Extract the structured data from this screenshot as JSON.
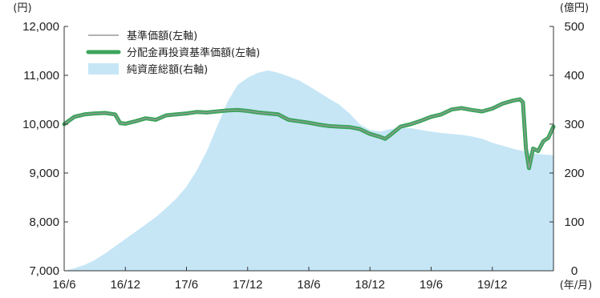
{
  "chart_data": {
    "type": "line",
    "units": {
      "left": "(円)",
      "right": "(億円)",
      "x": "(年/月)"
    },
    "yleft": {
      "lim": [
        7000,
        12000
      ],
      "ticks": [
        "7,000",
        "8,000",
        "9,000",
        "10,000",
        "11,000",
        "12,000"
      ]
    },
    "yright": {
      "lim": [
        0,
        500
      ],
      "ticks": [
        "0",
        "100",
        "200",
        "300",
        "400",
        "500"
      ]
    },
    "x": {
      "lim": [
        0,
        48
      ],
      "ticks": [
        "16/6",
        "16/12",
        "17/6",
        "17/12",
        "18/6",
        "18/12",
        "19/6",
        "19/12"
      ]
    },
    "grid": false,
    "legend_position": "top-left",
    "colors": {
      "nav": "#9a9a9a",
      "reinvested": "#3aa55a",
      "assets": "#c6e6f6"
    },
    "series": [
      {
        "name": "基準価額(左軸)",
        "axis": "left",
        "style": "line",
        "points": [
          [
            0,
            10000
          ],
          [
            1,
            10150
          ],
          [
            2,
            10200
          ],
          [
            3,
            10220
          ],
          [
            4,
            10230
          ],
          [
            5,
            10200
          ],
          [
            5.5,
            10020
          ],
          [
            6,
            10010
          ],
          [
            7,
            10060
          ],
          [
            8,
            10120
          ],
          [
            9,
            10090
          ],
          [
            10,
            10180
          ],
          [
            11,
            10200
          ],
          [
            12,
            10220
          ],
          [
            13,
            10250
          ],
          [
            14,
            10240
          ],
          [
            15,
            10260
          ],
          [
            16,
            10280
          ],
          [
            17,
            10290
          ],
          [
            18,
            10270
          ],
          [
            19,
            10240
          ],
          [
            20,
            10220
          ],
          [
            21,
            10200
          ],
          [
            22,
            10090
          ],
          [
            23,
            10060
          ],
          [
            24,
            10030
          ],
          [
            25,
            9990
          ],
          [
            26,
            9960
          ],
          [
            27,
            9950
          ],
          [
            28,
            9940
          ],
          [
            29,
            9900
          ],
          [
            30,
            9800
          ],
          [
            31,
            9740
          ],
          [
            31.5,
            9700
          ],
          [
            32,
            9780
          ],
          [
            33,
            9950
          ],
          [
            34,
            10000
          ],
          [
            35,
            10070
          ],
          [
            36,
            10150
          ],
          [
            37,
            10200
          ],
          [
            38,
            10300
          ],
          [
            39,
            10330
          ],
          [
            40,
            10290
          ],
          [
            41,
            10260
          ],
          [
            42,
            10320
          ],
          [
            43,
            10420
          ],
          [
            44,
            10480
          ],
          [
            44.7,
            10510
          ],
          [
            45,
            10450
          ],
          [
            45.3,
            9500
          ],
          [
            45.6,
            9100
          ],
          [
            46,
            9500
          ],
          [
            46.5,
            9450
          ],
          [
            47,
            9650
          ],
          [
            47.5,
            9720
          ],
          [
            48,
            9950
          ]
        ]
      },
      {
        "name": "分配金再投資基準価額(左軸)",
        "axis": "left",
        "style": "line",
        "points": [
          [
            0,
            10000
          ],
          [
            1,
            10150
          ],
          [
            2,
            10200
          ],
          [
            3,
            10220
          ],
          [
            4,
            10230
          ],
          [
            5,
            10200
          ],
          [
            5.5,
            10020
          ],
          [
            6,
            10010
          ],
          [
            7,
            10060
          ],
          [
            8,
            10120
          ],
          [
            9,
            10090
          ],
          [
            10,
            10180
          ],
          [
            11,
            10200
          ],
          [
            12,
            10220
          ],
          [
            13,
            10250
          ],
          [
            14,
            10240
          ],
          [
            15,
            10260
          ],
          [
            16,
            10280
          ],
          [
            17,
            10290
          ],
          [
            18,
            10270
          ],
          [
            19,
            10240
          ],
          [
            20,
            10220
          ],
          [
            21,
            10200
          ],
          [
            22,
            10090
          ],
          [
            23,
            10060
          ],
          [
            24,
            10030
          ],
          [
            25,
            9990
          ],
          [
            26,
            9960
          ],
          [
            27,
            9950
          ],
          [
            28,
            9940
          ],
          [
            29,
            9900
          ],
          [
            30,
            9800
          ],
          [
            31,
            9740
          ],
          [
            31.5,
            9700
          ],
          [
            32,
            9780
          ],
          [
            33,
            9950
          ],
          [
            34,
            10000
          ],
          [
            35,
            10070
          ],
          [
            36,
            10150
          ],
          [
            37,
            10200
          ],
          [
            38,
            10300
          ],
          [
            39,
            10330
          ],
          [
            40,
            10290
          ],
          [
            41,
            10260
          ],
          [
            42,
            10320
          ],
          [
            43,
            10420
          ],
          [
            44,
            10480
          ],
          [
            44.7,
            10510
          ],
          [
            45,
            10450
          ],
          [
            45.3,
            9500
          ],
          [
            45.6,
            9100
          ],
          [
            46,
            9500
          ],
          [
            46.5,
            9450
          ],
          [
            47,
            9650
          ],
          [
            47.5,
            9720
          ],
          [
            48,
            9950
          ]
        ]
      },
      {
        "name": "純資産総額(右軸)",
        "axis": "right",
        "style": "area",
        "points": [
          [
            0,
            0
          ],
          [
            1,
            5
          ],
          [
            2,
            12
          ],
          [
            3,
            22
          ],
          [
            4,
            35
          ],
          [
            5,
            50
          ],
          [
            6,
            65
          ],
          [
            7,
            80
          ],
          [
            8,
            95
          ],
          [
            9,
            110
          ],
          [
            10,
            128
          ],
          [
            11,
            148
          ],
          [
            12,
            172
          ],
          [
            13,
            205
          ],
          [
            14,
            245
          ],
          [
            15,
            295
          ],
          [
            16,
            345
          ],
          [
            17,
            380
          ],
          [
            18,
            395
          ],
          [
            19,
            405
          ],
          [
            20,
            410
          ],
          [
            21,
            405
          ],
          [
            22,
            398
          ],
          [
            23,
            390
          ],
          [
            24,
            378
          ],
          [
            25,
            365
          ],
          [
            26,
            352
          ],
          [
            27,
            340
          ],
          [
            28,
            322
          ],
          [
            29,
            300
          ],
          [
            30,
            288
          ],
          [
            31,
            285
          ],
          [
            32,
            290
          ],
          [
            33,
            292
          ],
          [
            34,
            292
          ],
          [
            35,
            288
          ],
          [
            36,
            285
          ],
          [
            37,
            282
          ],
          [
            38,
            280
          ],
          [
            39,
            278
          ],
          [
            40,
            275
          ],
          [
            41,
            270
          ],
          [
            42,
            262
          ],
          [
            43,
            256
          ],
          [
            44,
            250
          ],
          [
            45,
            245
          ],
          [
            46,
            240
          ],
          [
            47,
            238
          ],
          [
            48,
            236
          ]
        ]
      }
    ]
  }
}
